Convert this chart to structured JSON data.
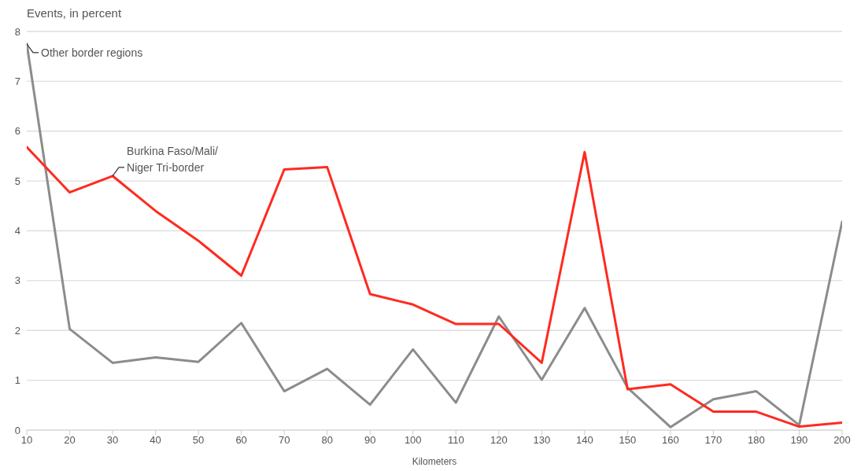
{
  "chart_data": {
    "type": "line",
    "ylabel": "Events, in percent",
    "xlabel": "Kilometers",
    "x": [
      10,
      20,
      30,
      40,
      50,
      60,
      70,
      80,
      90,
      100,
      110,
      120,
      130,
      140,
      150,
      160,
      170,
      180,
      190,
      200
    ],
    "series": [
      {
        "color": "#8c8c8c",
        "values": [
          7.75,
          2.03,
          1.35,
          1.46,
          1.37,
          2.15,
          0.78,
          1.23,
          0.51,
          1.62,
          0.55,
          2.28,
          1.01,
          2.45,
          0.85,
          0.06,
          0.62,
          0.78,
          0.1,
          4.18
        ]
      },
      {
        "color": "#ff2a1f",
        "values": [
          5.68,
          4.77,
          5.1,
          4.4,
          3.8,
          3.1,
          5.23,
          5.28,
          2.73,
          2.52,
          2.13,
          2.13,
          1.35,
          5.58,
          0.82,
          0.92,
          0.37,
          0.37,
          0.07,
          0.15
        ]
      }
    ],
    "annotations": [
      {
        "text": "Other border regions",
        "x": 10,
        "y": 7.75
      },
      {
        "text": "Burkina Faso/Mali/Niger Tri-border",
        "x": 30,
        "y": 5.1
      }
    ],
    "xlim": [
      10,
      200
    ],
    "xticks": [
      10,
      20,
      30,
      40,
      50,
      60,
      70,
      80,
      90,
      100,
      110,
      120,
      130,
      140,
      150,
      160,
      170,
      180,
      190,
      200
    ],
    "ylim": [
      0,
      8
    ],
    "yticks": [
      0,
      1,
      2,
      3,
      4,
      5,
      6,
      7,
      8
    ],
    "grid": "y",
    "legend": false,
    "marker": "none",
    "line_style": "solid"
  }
}
